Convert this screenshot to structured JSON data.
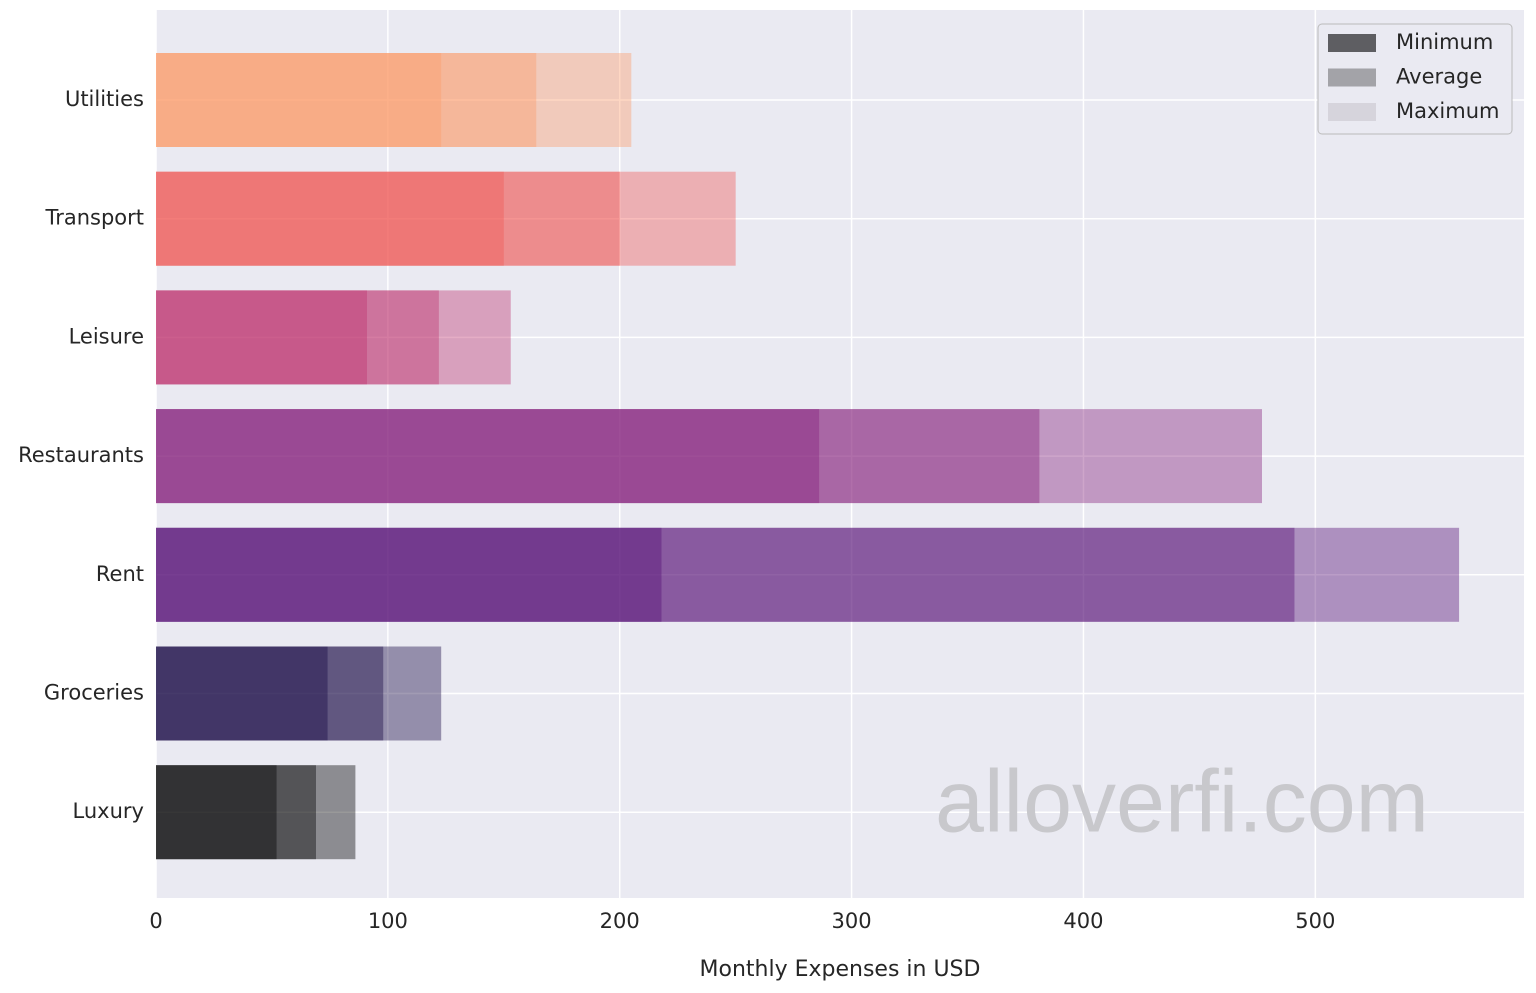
{
  "chart_data": {
    "type": "overlay-barh",
    "xlabel": "Monthly Expenses in USD",
    "watermark": "alloverfi.com",
    "categories": [
      "Utilities",
      "Transport",
      "Leisure",
      "Restaurants",
      "Rent",
      "Groceries",
      "Luxury"
    ],
    "category_colors": [
      "#fd9c69",
      "#f05856",
      "#be316d",
      "#851f7a",
      "#530b74",
      "#140641",
      "#000000"
    ],
    "layer_opacity": 0.4,
    "series": [
      {
        "name": "Minimum",
        "color": "#5e5e62",
        "values": [
          123,
          150,
          91,
          286,
          218,
          74,
          52
        ]
      },
      {
        "name": "Average",
        "color": "#a3a3a8",
        "values": [
          164,
          200,
          122,
          381,
          491,
          98,
          69
        ]
      },
      {
        "name": "Maximum",
        "color": "#d6d4dc",
        "values": [
          205,
          250,
          153,
          477,
          562,
          123,
          86
        ]
      }
    ],
    "xlim": [
      0,
      590
    ],
    "xticks": [
      0,
      100,
      200,
      300,
      400,
      500
    ],
    "grid": true,
    "legend": "upper right"
  }
}
